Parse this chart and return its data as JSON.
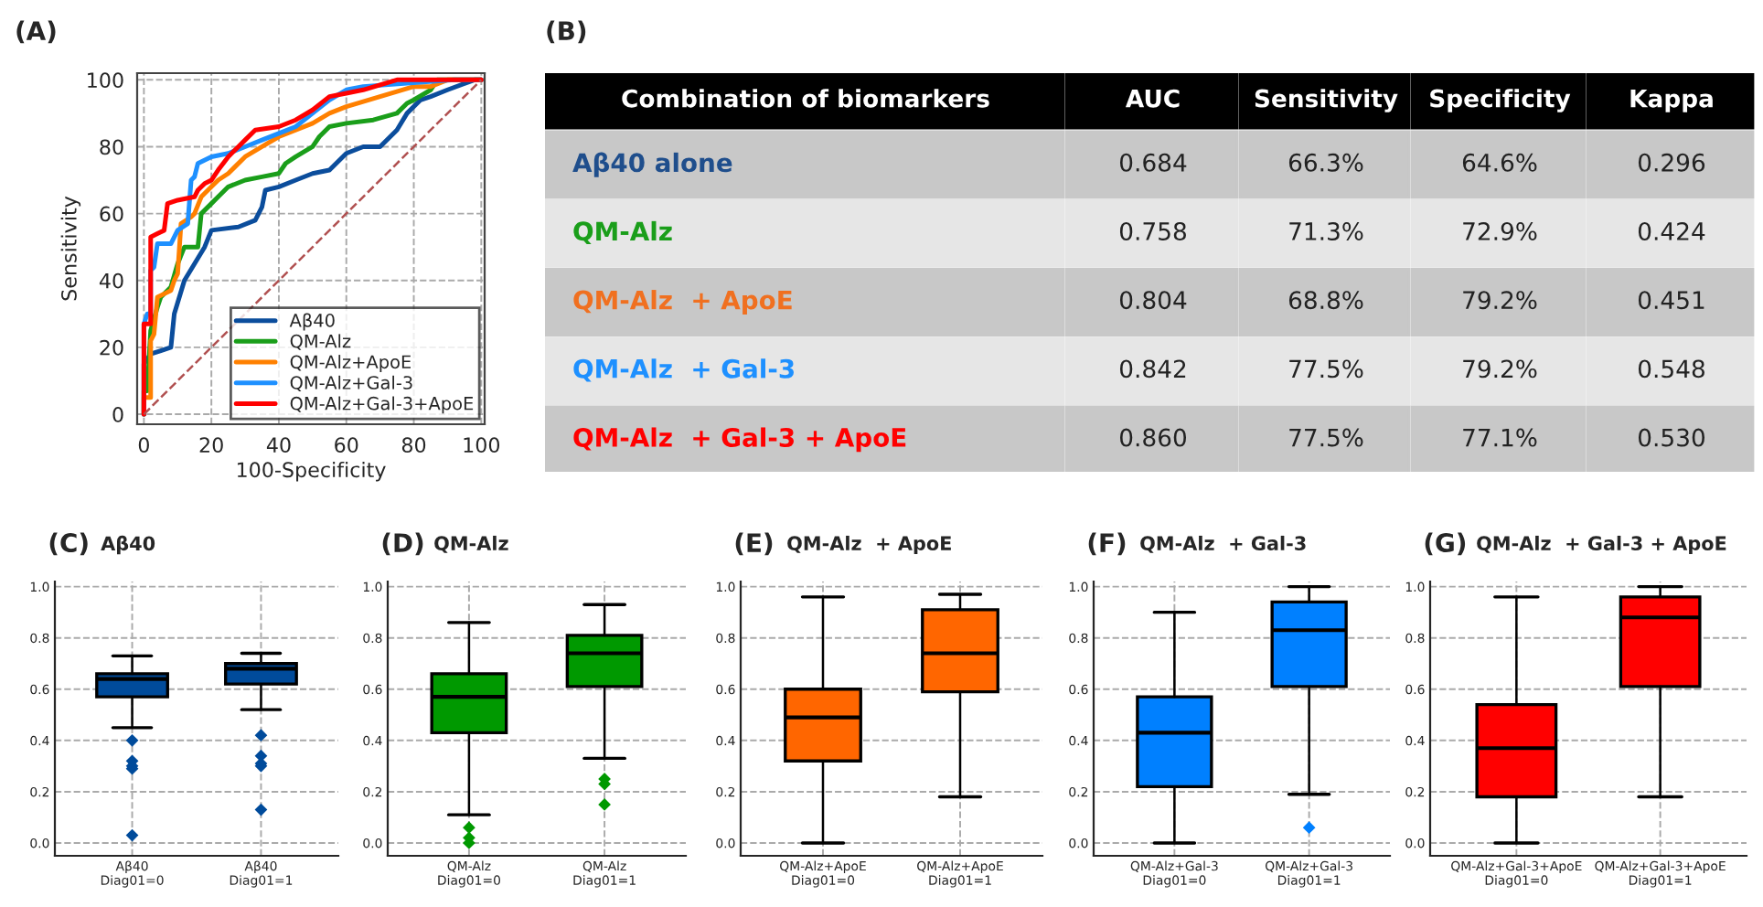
{
  "chart_data": [
    {
      "type": "line",
      "title": "(A)",
      "xlabel": "100-Specificity",
      "ylabel": "Sensitivity",
      "xlim": [
        -2,
        101
      ],
      "ylim": [
        -3,
        102
      ],
      "xticks": [
        0,
        20,
        40,
        60,
        80,
        100
      ],
      "yticks": [
        0,
        20,
        40,
        60,
        80,
        100
      ],
      "grid": true,
      "legend": "bottom right",
      "marker": "none",
      "series": [
        {
          "name": "Aβ40",
          "color": "#0b4d9c",
          "x": [
            0,
            0,
            2,
            5,
            8,
            9,
            12,
            15,
            18,
            20,
            28,
            33,
            35,
            36,
            40,
            45,
            50,
            55,
            60,
            65,
            70,
            75,
            78,
            82,
            85,
            90,
            98,
            100
          ],
          "values": [
            0,
            15,
            18,
            19,
            20,
            30,
            40,
            45,
            50,
            55,
            56,
            58,
            62,
            67,
            68,
            70,
            72,
            73,
            78,
            80,
            80,
            85,
            90,
            94,
            95,
            97,
            100,
            100
          ]
        },
        {
          "name": "QM-Alz",
          "color": "#1a9e1a",
          "x": [
            0,
            0,
            1,
            2,
            4,
            5,
            8,
            10,
            12,
            16,
            17,
            20,
            22,
            25,
            30,
            35,
            40,
            42,
            45,
            50,
            52,
            55,
            60,
            68,
            75,
            78,
            80,
            85,
            87,
            100
          ],
          "values": [
            0,
            7,
            7,
            25,
            32,
            35,
            38,
            45,
            50,
            50,
            60,
            63,
            65,
            68,
            70,
            71,
            72,
            75,
            77,
            80,
            83,
            86,
            87,
            88,
            90,
            93,
            94,
            97,
            100,
            100
          ]
        },
        {
          "name": "QM-Alz+ApoE",
          "color": "#ff8000",
          "x": [
            0,
            0,
            2,
            2,
            3,
            4,
            6,
            8,
            9,
            10,
            11,
            14,
            15,
            17,
            20,
            22,
            25,
            30,
            35,
            40,
            45,
            50,
            55,
            60,
            70,
            80,
            85,
            90,
            100
          ],
          "values": [
            0,
            5,
            5,
            22,
            24,
            35,
            36,
            37,
            40,
            42,
            57,
            59,
            60,
            65,
            68,
            70,
            72,
            77,
            80,
            83,
            85,
            87,
            90,
            92,
            95,
            98,
            98,
            100,
            100
          ]
        },
        {
          "name": "QM-Alz+Gal-3",
          "color": "#1e90ff",
          "x": [
            0,
            0,
            1,
            2,
            2,
            3,
            4,
            8,
            10,
            13,
            14,
            15,
            16,
            20,
            25,
            30,
            35,
            40,
            45,
            50,
            55,
            60,
            65,
            92,
            100
          ],
          "values": [
            0,
            27,
            30,
            30,
            43,
            44,
            51,
            51,
            55,
            57,
            70,
            71,
            75,
            77,
            78,
            80,
            82,
            84,
            86,
            90,
            94,
            97,
            98,
            100,
            100
          ]
        },
        {
          "name": "QM-Alz+Gal-3+ApoE",
          "color": "#ff0000",
          "x": [
            0,
            0,
            2,
            2,
            4,
            6,
            7,
            10,
            15,
            16,
            18,
            20,
            22,
            25,
            28,
            30,
            33,
            40,
            45,
            50,
            55,
            60,
            65,
            75,
            100
          ],
          "values": [
            0,
            27,
            27,
            53,
            54,
            55,
            63,
            64,
            65,
            67,
            69,
            70,
            73,
            77,
            80,
            82,
            85,
            86,
            88,
            91,
            95,
            96,
            97,
            100,
            100
          ]
        },
        {
          "color": "#b05050",
          "line_style": "dashed",
          "x": [
            0,
            100
          ],
          "values": [
            0,
            100
          ]
        }
      ]
    },
    {
      "type": "other",
      "title": "(B)",
      "annotations": [
        "Combination of biomarkers",
        "AUC",
        "Sensitivity",
        "Specificity",
        "Kappa",
        "Aβ40 alone",
        "0.684",
        "66.3%",
        "64.6%",
        "0.296",
        "QM-Alz",
        "0.758",
        "71.3%",
        "72.9%",
        "0.424",
        "QM-Alz  + ApoE",
        "0.804",
        "68.8%",
        "79.2%",
        "0.451",
        "QM-Alz  + Gal-3",
        "0.842",
        "77.5%",
        "79.2%",
        "0.548",
        "QM-Alz  + Gal-3 + ApoE",
        "0.860",
        "77.5%",
        "77.1%",
        "0.530"
      ],
      "colors": [
        "#ffffff",
        "#ffffff",
        "#ffffff",
        "#ffffff",
        "#ffffff",
        "#1f4e8c",
        "#222222",
        "#222222",
        "#222222",
        "#222222",
        "#1a9e1a",
        "#222222",
        "#222222",
        "#222222",
        "#222222",
        "#f07020",
        "#222222",
        "#222222",
        "#222222",
        "#222222",
        "#1e90ff",
        "#222222",
        "#222222",
        "#222222",
        "#222222",
        "#ff0000",
        "#222222",
        "#222222",
        "#222222",
        "#222222"
      ]
    },
    {
      "type": "box",
      "title": "(C)",
      "subtitle": "Aβ40",
      "categories": [
        "Aβ40\nDiag01=0",
        "Aβ40\nDiag01=1"
      ],
      "color": "#004b9b",
      "ylim": [
        -0.05,
        1.02
      ],
      "yticks": [
        {
          "value": 0,
          "label": "0.0"
        },
        {
          "value": 0.2,
          "label": "0.2"
        },
        {
          "value": 0.4,
          "label": "0.4"
        },
        {
          "value": 0.6,
          "label": "0.6"
        },
        {
          "value": 0.8,
          "label": "0.8"
        },
        {
          "value": 1,
          "label": "1.0"
        }
      ],
      "grid": true,
      "boxes": [
        {
          "low": 0.45,
          "q1": 0.57,
          "median": 0.64,
          "q3": 0.66,
          "high": 0.73,
          "outliers": [
            0.4,
            0.32,
            0.3,
            0.29,
            0.03
          ]
        },
        {
          "low": 0.52,
          "q1": 0.62,
          "median": 0.68,
          "q3": 0.7,
          "high": 0.74,
          "outliers": [
            0.42,
            0.34,
            0.31,
            0.3,
            0.13
          ]
        }
      ]
    },
    {
      "type": "box",
      "title": "(D)",
      "subtitle": "QM-Alz",
      "categories": [
        "QM-Alz\nDiag01=0",
        "QM-Alz\nDiag01=1"
      ],
      "color": "#009900",
      "ylim": [
        -0.05,
        1.02
      ],
      "yticks": [
        {
          "value": 0,
          "label": "0.0"
        },
        {
          "value": 0.2,
          "label": "0.2"
        },
        {
          "value": 0.4,
          "label": "0.4"
        },
        {
          "value": 0.6,
          "label": "0.6"
        },
        {
          "value": 0.8,
          "label": "0.8"
        },
        {
          "value": 1,
          "label": "1.0"
        }
      ],
      "grid": true,
      "boxes": [
        {
          "low": 0.11,
          "q1": 0.43,
          "median": 0.57,
          "q3": 0.66,
          "high": 0.86,
          "outliers": [
            0.06,
            0.02,
            0.0
          ]
        },
        {
          "low": 0.33,
          "q1": 0.61,
          "median": 0.74,
          "q3": 0.81,
          "high": 0.93,
          "outliers": [
            0.25,
            0.23,
            0.15
          ]
        }
      ]
    },
    {
      "type": "box",
      "title": "(E)",
      "subtitle": "QM-Alz  + ApoE",
      "categories": [
        "QM-Alz+ApoE\nDiag01=0",
        "QM-Alz+ApoE\nDiag01=1"
      ],
      "color": "#ff6600",
      "ylim": [
        -0.05,
        1.02
      ],
      "yticks": [
        {
          "value": 0,
          "label": "0.0"
        },
        {
          "value": 0.2,
          "label": "0.2"
        },
        {
          "value": 0.4,
          "label": "0.4"
        },
        {
          "value": 0.6,
          "label": "0.6"
        },
        {
          "value": 0.8,
          "label": "0.8"
        },
        {
          "value": 1,
          "label": "1.0"
        }
      ],
      "grid": true,
      "boxes": [
        {
          "low": 0.0,
          "q1": 0.32,
          "median": 0.49,
          "q3": 0.6,
          "high": 0.96
        },
        {
          "low": 0.18,
          "q1": 0.59,
          "median": 0.74,
          "q3": 0.91,
          "high": 0.97
        }
      ]
    },
    {
      "type": "box",
      "title": "(F)",
      "subtitle": "QM-Alz  + Gal-3",
      "categories": [
        "QM-Alz+Gal-3\nDiag01=0",
        "QM-Alz+Gal-3\nDiag01=1"
      ],
      "color": "#0080ff",
      "ylim": [
        -0.05,
        1.02
      ],
      "yticks": [
        {
          "value": 0,
          "label": "0.0"
        },
        {
          "value": 0.2,
          "label": "0.2"
        },
        {
          "value": 0.4,
          "label": "0.4"
        },
        {
          "value": 0.6,
          "label": "0.6"
        },
        {
          "value": 0.8,
          "label": "0.8"
        },
        {
          "value": 1,
          "label": "1.0"
        }
      ],
      "grid": true,
      "boxes": [
        {
          "low": 0.0,
          "q1": 0.22,
          "median": 0.43,
          "q3": 0.57,
          "high": 0.9
        },
        {
          "low": 0.19,
          "q1": 0.61,
          "median": 0.83,
          "q3": 0.94,
          "high": 1.0,
          "outliers": [
            0.06
          ]
        }
      ]
    },
    {
      "type": "box",
      "title": "(G)",
      "subtitle": "QM-Alz  + Gal-3 + ApoE",
      "categories": [
        "QM-Alz+Gal-3+ApoE\nDiag01=0",
        "QM-Alz+Gal-3+ApoE\nDiag01=1"
      ],
      "color": "#ff0000",
      "ylim": [
        -0.05,
        1.02
      ],
      "yticks": [
        {
          "value": 0,
          "label": "0.0"
        },
        {
          "value": 0.2,
          "label": "0.2"
        },
        {
          "value": 0.4,
          "label": "0.4"
        },
        {
          "value": 0.6,
          "label": "0.6"
        },
        {
          "value": 0.8,
          "label": "0.8"
        },
        {
          "value": 1,
          "label": "1.0"
        }
      ],
      "grid": true,
      "boxes": [
        {
          "low": 0.0,
          "q1": 0.18,
          "median": 0.37,
          "q3": 0.54,
          "high": 0.96
        },
        {
          "low": 0.18,
          "q1": 0.61,
          "median": 0.88,
          "q3": 0.96,
          "high": 1.0
        }
      ]
    }
  ]
}
